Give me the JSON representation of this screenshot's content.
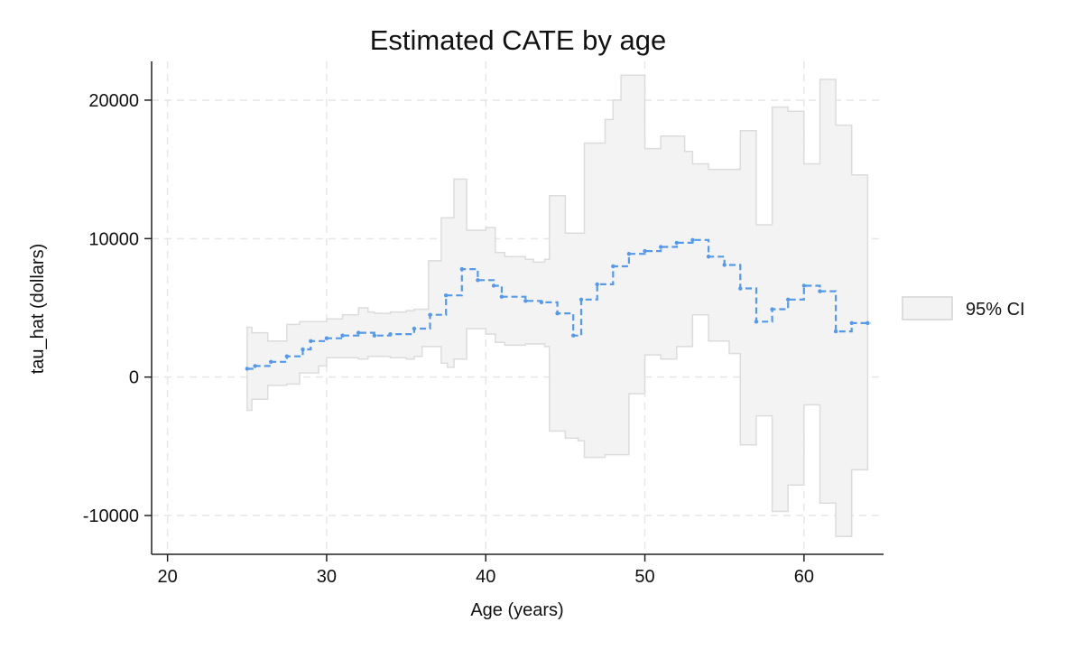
{
  "chart_data": {
    "type": "line",
    "title": "Estimated CATE by age",
    "xlabel": "Age (years)",
    "ylabel": "tau_hat (dollars)",
    "xlim": [
      19,
      65
    ],
    "ylim": [
      -12800,
      22800
    ],
    "xticks": [
      20,
      30,
      40,
      50,
      60
    ],
    "yticks": [
      -10000,
      0,
      10000,
      20000
    ],
    "x_tick_labels": [
      "20",
      "30",
      "40",
      "50",
      "60"
    ],
    "y_tick_labels": [
      "-10000",
      "0",
      "10000",
      "20000"
    ],
    "grid": true,
    "legend": {
      "position": "right",
      "entries": [
        "95% CI"
      ]
    },
    "colors": {
      "estimate": "#5599e8",
      "ci_fill": "#f3f3f3",
      "ci_edge": "#dcdcdc",
      "grid": "#e6e6e6",
      "axis": "#222222"
    },
    "series": [
      {
        "kind": "step-line",
        "dashed": true,
        "points": [
          [
            25,
            600
          ],
          [
            25.5,
            800
          ],
          [
            26.5,
            1100
          ],
          [
            27.5,
            1500
          ],
          [
            28.5,
            2000
          ],
          [
            29,
            2600
          ],
          [
            30,
            2800
          ],
          [
            31,
            3000
          ],
          [
            32,
            3200
          ],
          [
            33,
            3000
          ],
          [
            34,
            3100
          ],
          [
            35.5,
            3500
          ],
          [
            36.5,
            4500
          ],
          [
            37.5,
            5900
          ],
          [
            38.5,
            7800
          ],
          [
            39.5,
            7000
          ],
          [
            40.5,
            6600
          ],
          [
            41,
            5800
          ],
          [
            42.5,
            5500
          ],
          [
            43.5,
            5400
          ],
          [
            44.5,
            4600
          ],
          [
            45.5,
            3000
          ],
          [
            46,
            5600
          ],
          [
            47,
            6700
          ],
          [
            48,
            8000
          ],
          [
            49,
            8900
          ],
          [
            50,
            9100
          ],
          [
            51,
            9400
          ],
          [
            52,
            9700
          ],
          [
            53,
            9900
          ],
          [
            54,
            8700
          ],
          [
            55,
            8100
          ],
          [
            56,
            6400
          ],
          [
            57,
            4000
          ],
          [
            58,
            4900
          ],
          [
            59,
            5600
          ],
          [
            60,
            6600
          ],
          [
            61,
            6200
          ],
          [
            62,
            3300
          ],
          [
            63,
            3900
          ],
          [
            64,
            3900
          ]
        ]
      },
      {
        "name": "95% CI",
        "kind": "step-band",
        "points": [
          [
            25,
            -2400,
            3600
          ],
          [
            25.3,
            -1600,
            3200
          ],
          [
            26.3,
            -600,
            2600
          ],
          [
            27.5,
            -500,
            3800
          ],
          [
            28.3,
            300,
            4000
          ],
          [
            29.5,
            800,
            4000
          ],
          [
            30,
            1400,
            4200
          ],
          [
            31,
            1400,
            4500
          ],
          [
            32,
            1300,
            5000
          ],
          [
            32.6,
            1500,
            4700
          ],
          [
            33,
            1500,
            4600
          ],
          [
            34,
            1400,
            4700
          ],
          [
            35,
            1300,
            4800
          ],
          [
            35.5,
            1500,
            4900
          ],
          [
            36,
            2200,
            4900
          ],
          [
            36.4,
            2200,
            8400
          ],
          [
            37.2,
            1000,
            11500
          ],
          [
            37.6,
            700,
            11500
          ],
          [
            38,
            1300,
            14300
          ],
          [
            38.8,
            3500,
            10600
          ],
          [
            40,
            3100,
            10800
          ],
          [
            40.6,
            2500,
            9000
          ],
          [
            41.2,
            2300,
            8700
          ],
          [
            42.5,
            2400,
            8500
          ],
          [
            43,
            2400,
            8300
          ],
          [
            43.7,
            2200,
            8500
          ],
          [
            44,
            -3900,
            13100
          ],
          [
            45,
            -4400,
            10400
          ],
          [
            45.8,
            -4600,
            10400
          ],
          [
            46.2,
            -5800,
            16900
          ],
          [
            47,
            -5800,
            16900
          ],
          [
            47.5,
            -5600,
            18600
          ],
          [
            48,
            -5600,
            20000
          ],
          [
            48.5,
            -5600,
            21800
          ],
          [
            49,
            -1200,
            21800
          ],
          [
            50,
            1600,
            16500
          ],
          [
            51,
            1300,
            17400
          ],
          [
            52,
            2200,
            17400
          ],
          [
            52.5,
            2200,
            16300
          ],
          [
            53,
            4500,
            15400
          ],
          [
            54,
            2600,
            15000
          ],
          [
            55.3,
            1700,
            15000
          ],
          [
            56,
            -4900,
            17800
          ],
          [
            57,
            -2800,
            11000
          ],
          [
            58,
            -9700,
            19500
          ],
          [
            59,
            -7800,
            19200
          ],
          [
            60,
            -2000,
            15400
          ],
          [
            61,
            -9100,
            21500
          ],
          [
            61.5,
            -9100,
            21500
          ],
          [
            62,
            -11500,
            18200
          ],
          [
            63,
            -6700,
            14600
          ],
          [
            64,
            -6700,
            14600
          ]
        ]
      }
    ]
  }
}
